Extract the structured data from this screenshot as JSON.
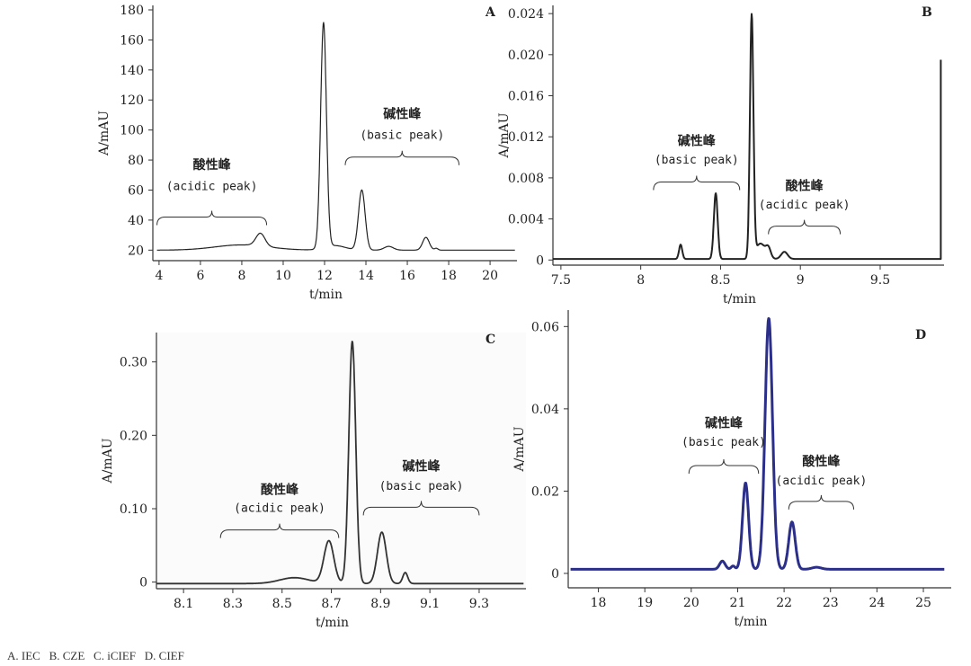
{
  "caption": "A. IEC   B. CZE   C. iCIEF   D. CIEF",
  "chart_data": [
    {
      "type": "line",
      "panel": "A",
      "title": "A",
      "xlabel": "t/min",
      "ylabel": "A/mAU",
      "xlim": [
        3.7,
        21.3
      ],
      "ylim": [
        13,
        183
      ],
      "xticks": [
        4,
        6,
        8,
        10,
        12,
        14,
        16,
        18,
        20
      ],
      "yticks": [
        20,
        40,
        60,
        80,
        100,
        120,
        140,
        160,
        180
      ],
      "xtick_labels": [
        "4",
        "6",
        "8",
        "10",
        "12",
        "14",
        "16",
        "18",
        "20"
      ],
      "ytick_labels": [
        "20",
        "40",
        "60",
        "80",
        "100",
        "120",
        "140",
        "160",
        "180"
      ],
      "line_color": "#222222",
      "x_range": [
        3.9,
        21.2
      ],
      "baseline": 20,
      "peaks": [
        [
          8.0,
          3.5,
          1.3
        ],
        [
          8.9,
          8.5,
          0.22
        ],
        [
          11.95,
          150,
          0.14
        ],
        [
          12.5,
          3,
          0.5
        ],
        [
          13.8,
          40,
          0.16
        ],
        [
          15.1,
          2.5,
          0.22
        ],
        [
          16.9,
          8.5,
          0.16
        ],
        [
          17.4,
          1.2,
          0.08
        ]
      ],
      "annotations": [
        {
          "cn": "酸性峰",
          "en": "(acidic peak)",
          "x1": 3.9,
          "x2": 9.2,
          "y": 42,
          "ty_cn": 74,
          "ty_en": 60
        },
        {
          "cn": "碱性峰",
          "en": "(basic peak)",
          "x1": 13.0,
          "x2": 18.5,
          "y": 82,
          "ty_cn": 108,
          "ty_en": 94
        }
      ]
    },
    {
      "type": "line",
      "panel": "B",
      "title": "B",
      "xlabel": "t/min",
      "ylabel": "A/mAU",
      "xlim": [
        7.45,
        9.9
      ],
      "ylim": [
        -0.0005,
        0.0248
      ],
      "xticks": [
        7.5,
        8,
        8.5,
        9,
        9.5
      ],
      "yticks": [
        0,
        0.004,
        0.008,
        0.012,
        0.016,
        0.02,
        0.024
      ],
      "xtick_labels": [
        "7.5",
        "8",
        "8.5",
        "9",
        "9.5"
      ],
      "ytick_labels": [
        "0",
        "0.004",
        "0.008",
        "0.012",
        "0.016",
        "0.020",
        "0.024"
      ],
      "line_color": "#222222",
      "x_range": [
        7.45,
        9.88
      ],
      "baseline": 0.0001,
      "peaks": [
        [
          8.25,
          0.0014,
          0.01
        ],
        [
          8.47,
          0.0064,
          0.012
        ],
        [
          8.695,
          0.0236,
          0.011
        ],
        [
          8.75,
          0.0015,
          0.03
        ],
        [
          8.8,
          0.0009,
          0.015
        ],
        [
          8.9,
          0.0007,
          0.02
        ]
      ],
      "end_spike": 0.0195,
      "annotations": [
        {
          "cn": "碱性峰",
          "en": "(basic peak)",
          "x1": 8.08,
          "x2": 8.62,
          "y": 0.0076,
          "ty_cn": 0.0112,
          "ty_en": 0.0094
        },
        {
          "cn": "酸性峰",
          "en": "(acidic peak)",
          "x1": 8.8,
          "x2": 9.25,
          "y": 0.0033,
          "ty_cn": 0.0068,
          "ty_en": 0.005
        }
      ]
    },
    {
      "type": "line",
      "panel": "C",
      "title": "C",
      "xlabel": "t/min",
      "ylabel": "A/mAU",
      "xlim": [
        7.99,
        9.49
      ],
      "ylim": [
        -0.009,
        0.34
      ],
      "xticks": [
        8.1,
        8.3,
        8.5,
        8.7,
        8.9,
        9.1,
        9.3
      ],
      "yticks": [
        0,
        0.1,
        0.2,
        0.3
      ],
      "xtick_labels": [
        "8.1",
        "8.3",
        "8.5",
        "8.7",
        "8.9",
        "9.1",
        "9.3"
      ],
      "ytick_labels": [
        "0",
        "0.10",
        "0.20",
        "0.30"
      ],
      "line_color": "#333333",
      "x_range": [
        7.99,
        9.48
      ],
      "baseline": -0.002,
      "peaks": [
        [
          8.55,
          0.008,
          0.06
        ],
        [
          8.69,
          0.058,
          0.02
        ],
        [
          8.785,
          0.33,
          0.014
        ],
        [
          8.905,
          0.07,
          0.018
        ],
        [
          9.0,
          0.015,
          0.01
        ]
      ],
      "annotations": [
        {
          "cn": "酸性峰",
          "en": "(acidic peak)",
          "x1": 8.25,
          "x2": 8.73,
          "y": 0.071,
          "ty_cn": 0.12,
          "ty_en": 0.096
        },
        {
          "cn": "碱性峰",
          "en": "(basic peak)",
          "x1": 8.83,
          "x2": 9.3,
          "y": 0.102,
          "ty_cn": 0.152,
          "ty_en": 0.126
        }
      ]
    },
    {
      "type": "line",
      "panel": "D",
      "title": "D",
      "xlabel": "t/min",
      "ylabel": "A/mAU",
      "xlim": [
        17.35,
        25.6
      ],
      "ylim": [
        -0.0035,
        0.064
      ],
      "xticks": [
        18,
        19,
        20,
        21,
        22,
        23,
        24,
        25
      ],
      "yticks": [
        0,
        0.02,
        0.04,
        0.06
      ],
      "xtick_labels": [
        "18",
        "19",
        "20",
        "21",
        "22",
        "23",
        "24",
        "25"
      ],
      "ytick_labels": [
        "0",
        "0.02",
        "0.04",
        "0.06"
      ],
      "line_color": "#2b2f8a",
      "x_range": [
        17.4,
        25.45
      ],
      "baseline": 0.001,
      "peaks": [
        [
          20.67,
          0.002,
          0.06
        ],
        [
          20.9,
          0.0008,
          0.04
        ],
        [
          21.17,
          0.021,
          0.065
        ],
        [
          21.67,
          0.061,
          0.08
        ],
        [
          22.17,
          0.0115,
          0.07
        ],
        [
          22.7,
          0.0005,
          0.1
        ]
      ],
      "annotations": [
        {
          "cn": "碱性峰",
          "en": "(basic peak)",
          "x1": 19.95,
          "x2": 21.45,
          "y": 0.0262,
          "ty_cn": 0.0355,
          "ty_en": 0.031
        },
        {
          "cn": "酸性峰",
          "en": "(acidic peak)",
          "x1": 22.1,
          "x2": 23.5,
          "y": 0.0175,
          "ty_cn": 0.0262,
          "ty_en": 0.0216
        }
      ]
    }
  ]
}
